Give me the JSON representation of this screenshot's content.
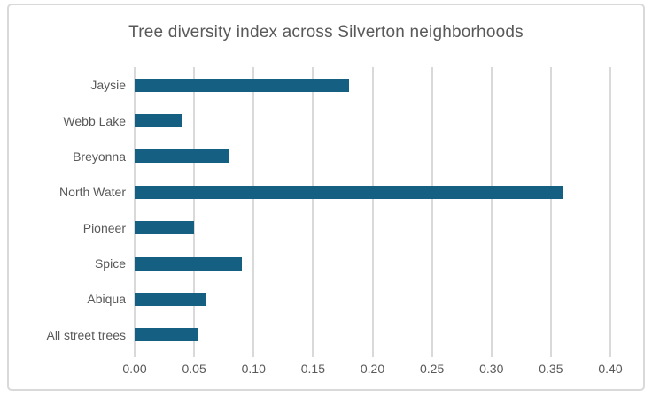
{
  "chart_data": {
    "type": "bar",
    "orientation": "horizontal",
    "title": "Tree diversity index across Silverton neighborhoods",
    "categories": [
      "Jaysie",
      "Webb Lake",
      "Breyonna",
      "North Water",
      "Pioneer",
      "Spice",
      "Abiqua",
      "All street trees"
    ],
    "values": [
      0.18,
      0.04,
      0.08,
      0.36,
      0.05,
      0.09,
      0.06,
      0.054
    ],
    "xlabel": "",
    "ylabel": "",
    "xlim": [
      0,
      0.4
    ],
    "xticks": [
      0,
      0.05,
      0.1,
      0.15,
      0.2,
      0.25,
      0.3,
      0.35,
      0.4
    ],
    "xtick_labels": [
      "0.00",
      "0.05",
      "0.10",
      "0.15",
      "0.20",
      "0.25",
      "0.30",
      "0.35",
      "0.40"
    ],
    "grid": true,
    "legend": false,
    "colors": {
      "bar": "#156082",
      "gridline": "#D9D9D9",
      "text": "#595959",
      "border": "#D9D9D9",
      "background": "#FFFFFF"
    }
  }
}
